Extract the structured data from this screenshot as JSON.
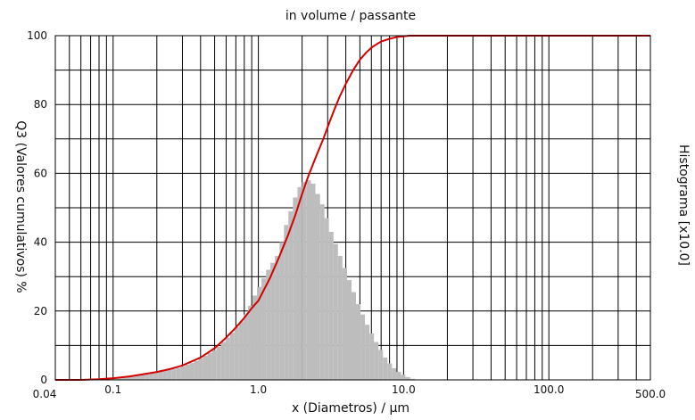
{
  "chart_data": {
    "type": "bar+line",
    "title": "in volume / passante",
    "xlabel": "x (Diametros) / µm",
    "ylabel": "Q3 (Valores cumulativos) %",
    "y2label": "Histograma [x10.0]",
    "x_scale": "log",
    "xlim": [
      0.04,
      500.0
    ],
    "ylim": [
      0,
      100
    ],
    "x_tick_labels": [
      {
        "value": 0.04,
        "label": "0.04"
      },
      {
        "value": 0.1,
        "label": "0.1"
      },
      {
        "value": 1.0,
        "label": "1.0"
      },
      {
        "value": 10.0,
        "label": "10.0"
      },
      {
        "value": 100.0,
        "label": "100.0"
      },
      {
        "value": 500.0,
        "label": "500.0"
      }
    ],
    "y_ticks": [
      0,
      20,
      40,
      60,
      80,
      100
    ],
    "y_gridlines": [
      0,
      10,
      20,
      30,
      40,
      50,
      60,
      70,
      80,
      90,
      100
    ],
    "grid": true,
    "colors": {
      "cumulative": "#d40000",
      "histogram": "#bdbdbd",
      "grid": "#000000"
    },
    "histogram": {
      "x": [
        0.1,
        0.107,
        0.115,
        0.124,
        0.133,
        0.143,
        0.153,
        0.165,
        0.177,
        0.19,
        0.204,
        0.219,
        0.235,
        0.252,
        0.271,
        0.291,
        0.313,
        0.336,
        0.36,
        0.387,
        0.416,
        0.446,
        0.479,
        0.515,
        0.553,
        0.594,
        0.638,
        0.685,
        0.735,
        0.79,
        0.848,
        0.91,
        0.978,
        1.05,
        1.13,
        1.21,
        1.3,
        1.4,
        1.5,
        1.61,
        1.73,
        1.86,
        2.0,
        2.15,
        2.3,
        2.47,
        2.66,
        2.85,
        3.06,
        3.29,
        3.53,
        3.79,
        4.08,
        4.38,
        4.7,
        5.05,
        5.42,
        5.82,
        6.25,
        6.71,
        7.21,
        7.74,
        8.31,
        8.93,
        9.59,
        10.3,
        11.1
      ],
      "values": [
        0.5,
        0.7,
        1.0,
        1.2,
        1.4,
        1.5,
        1.6,
        1.8,
        2.0,
        2.2,
        2.4,
        2.6,
        2.9,
        3.2,
        3.5,
        3.9,
        4.4,
        4.9,
        5.5,
        6.2,
        7.0,
        7.8,
        8.7,
        9.7,
        11.0,
        12.3,
        13.7,
        15.3,
        17.0,
        19.0,
        21.5,
        24.5,
        27.0,
        29.5,
        32.0,
        34.0,
        36.0,
        40.0,
        45.0,
        49.0,
        53.0,
        56.0,
        57.5,
        58.0,
        57.0,
        54.0,
        51.0,
        47.0,
        43.0,
        39.5,
        36.0,
        32.5,
        29.0,
        25.5,
        22.0,
        19.0,
        16.0,
        13.5,
        11.0,
        8.7,
        6.5,
        4.8,
        3.4,
        2.3,
        1.5,
        0.8,
        0.3
      ]
    },
    "cumulative": {
      "x": [
        0.04,
        0.06,
        0.08,
        0.1,
        0.13,
        0.16,
        0.2,
        0.25,
        0.3,
        0.4,
        0.5,
        0.6,
        0.7,
        0.8,
        0.9,
        1.0,
        1.2,
        1.4,
        1.6,
        1.8,
        2.0,
        2.2,
        2.5,
        2.8,
        3.0,
        3.3,
        3.6,
        4.0,
        4.5,
        5.0,
        5.5,
        6.0,
        6.5,
        7.0,
        8.0,
        9.0,
        10.0,
        11.0,
        12.0,
        15.0,
        20.0,
        50.0,
        100.0,
        200.0,
        500.0
      ],
      "values": [
        0.0,
        0.0,
        0.2,
        0.5,
        1.0,
        1.6,
        2.3,
        3.2,
        4.2,
        6.5,
        9.2,
        12.3,
        15.2,
        18.0,
        20.8,
        23.0,
        29.5,
        36.0,
        42.0,
        48.0,
        54.0,
        59.0,
        65.0,
        70.0,
        73.5,
        78.0,
        82.0,
        86.0,
        90.0,
        93.0,
        95.0,
        96.5,
        97.5,
        98.3,
        99.1,
        99.6,
        99.8,
        100.0,
        100.0,
        100.0,
        100.0,
        100.0,
        100.0,
        100.0,
        100.0
      ]
    }
  }
}
